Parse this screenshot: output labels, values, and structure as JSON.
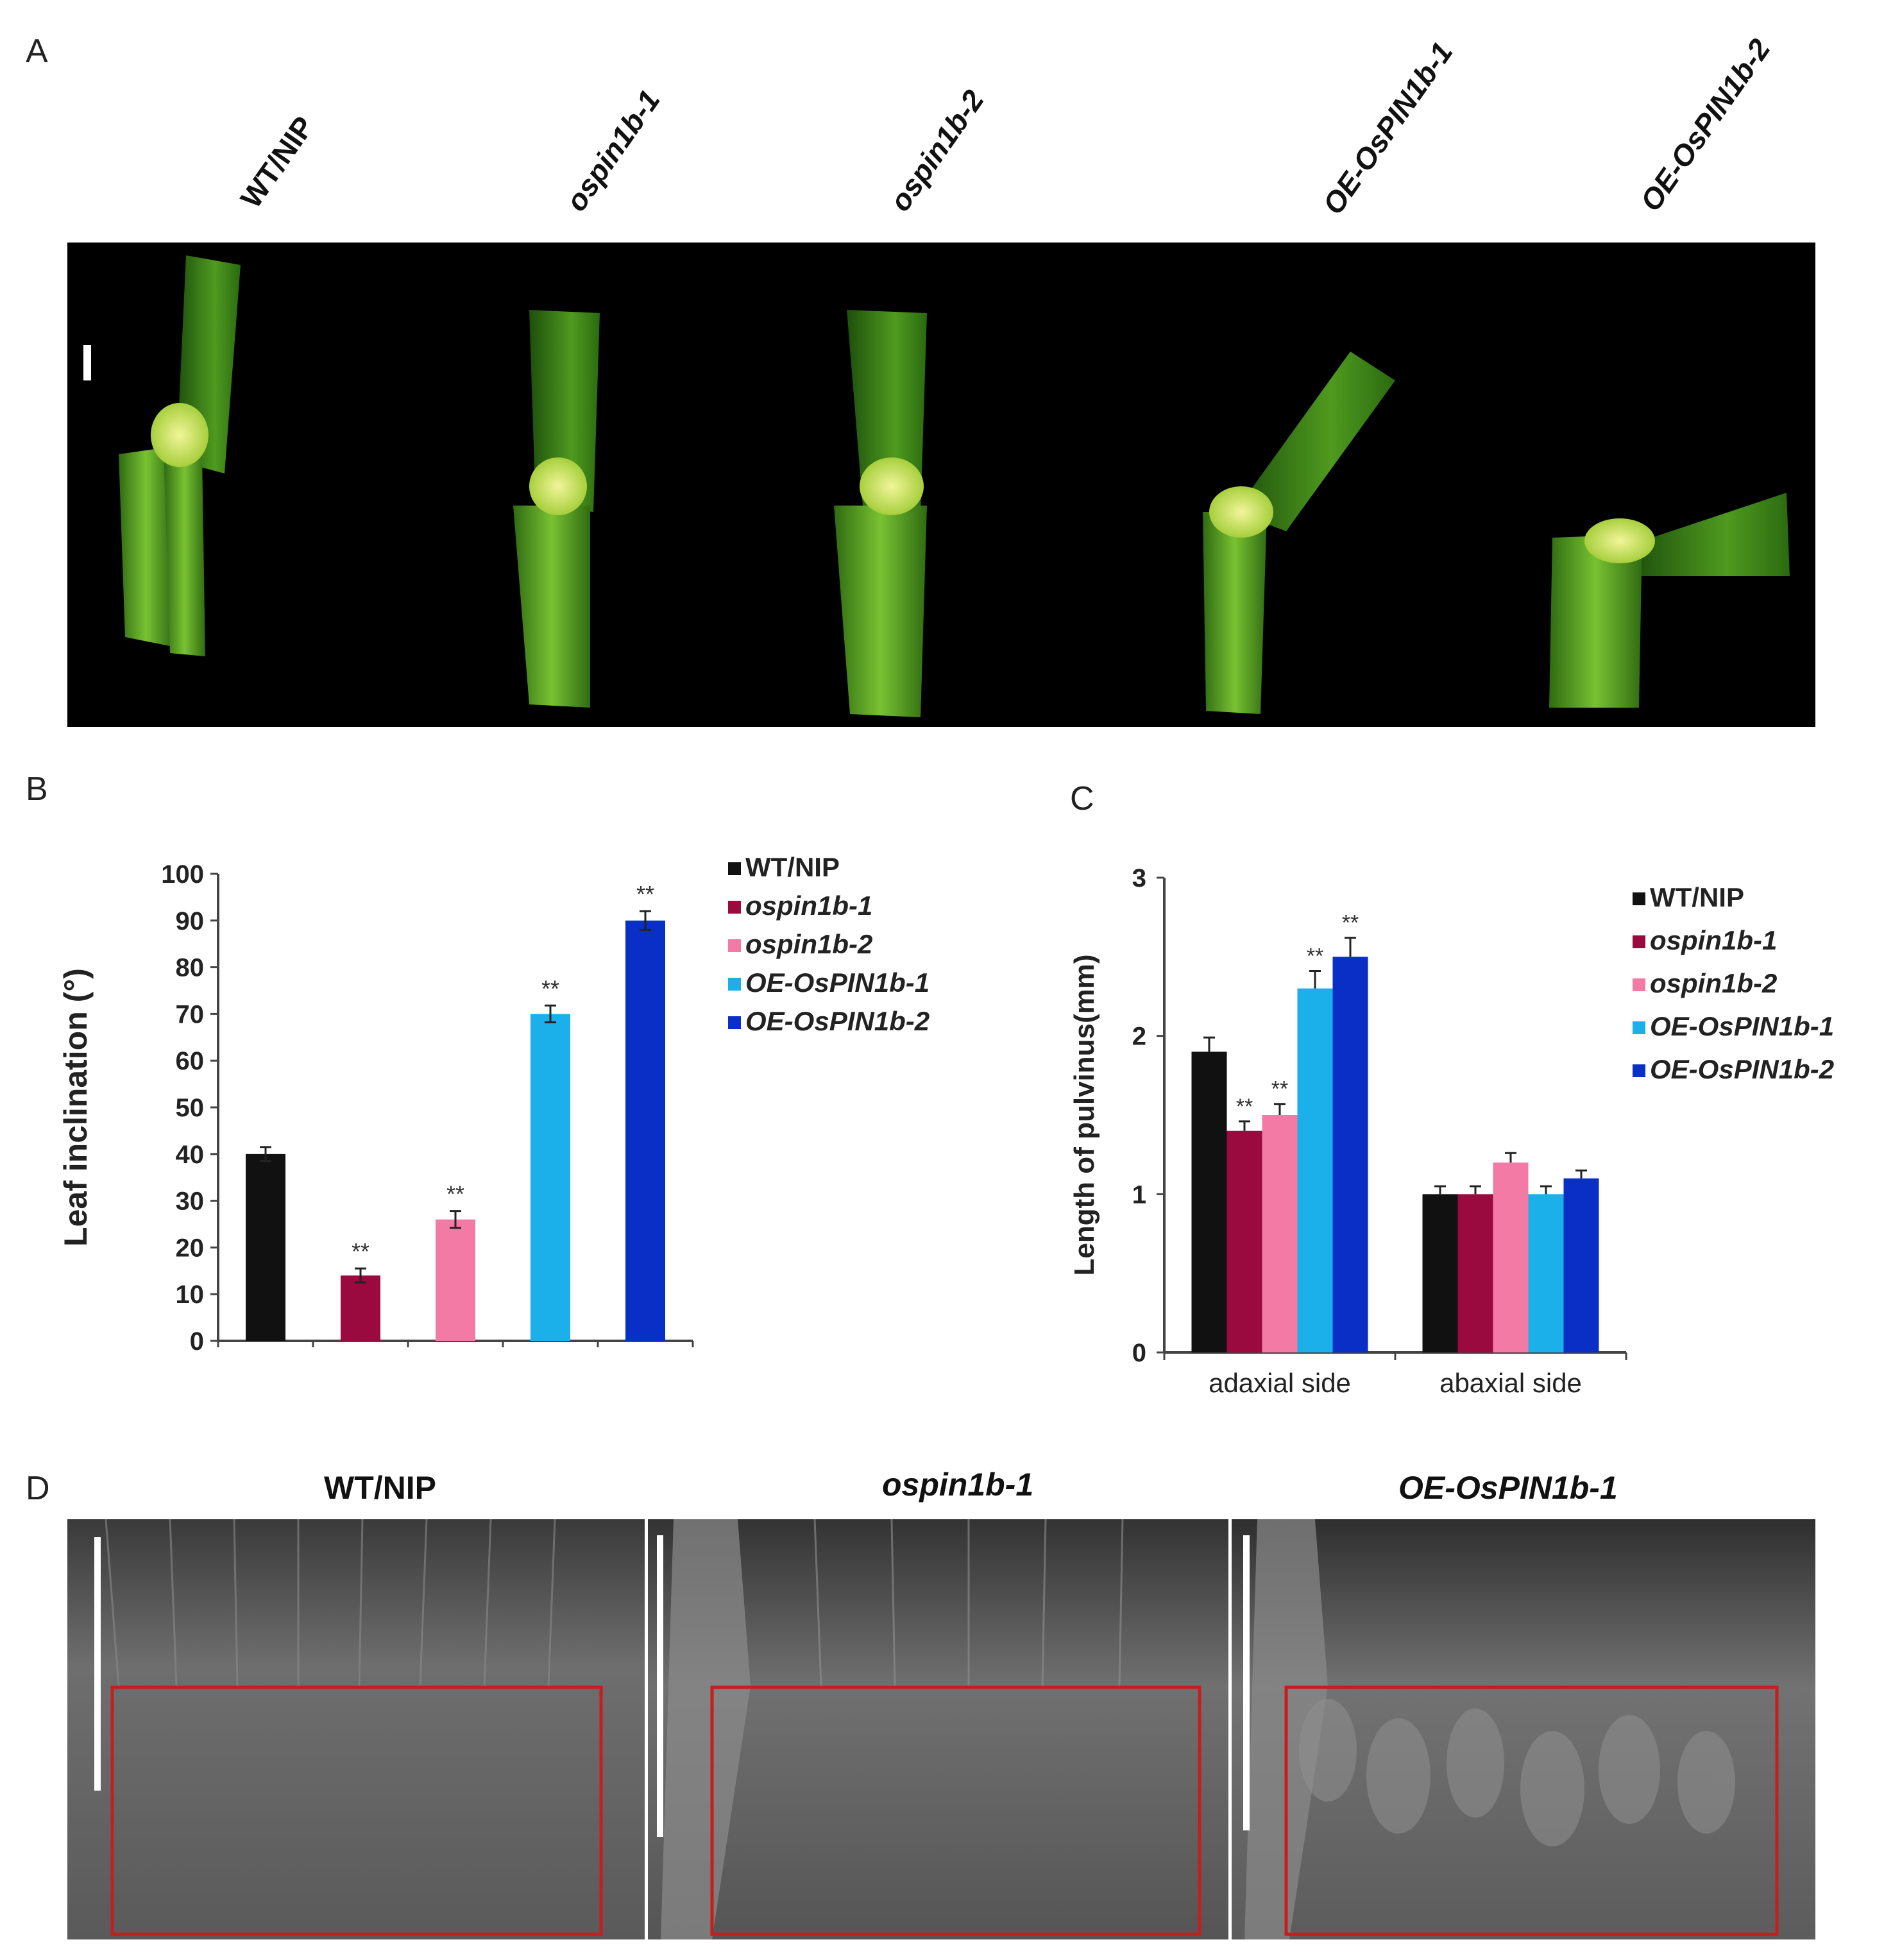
{
  "panels": {
    "a": {
      "letter": "A",
      "genotypes": [
        "WT/NIP",
        "ospin1b-1",
        "ospin1b-2",
        "OE-OsPIN1b-1",
        "OE-OsPIN1b-2"
      ]
    },
    "b": {
      "letter": "B"
    },
    "c": {
      "letter": "C"
    },
    "d": {
      "letter": "D",
      "titles": [
        "WT/NIP",
        "ospin1b-1",
        "OE-OsPIN1b-1"
      ]
    }
  },
  "colors": {
    "WT/NIP": "#111111",
    "ospin1b-1": "#9b0a3e",
    "ospin1b-2": "#f47aa6",
    "OE-OsPIN1b-1": "#1bb0ea",
    "OE-OsPIN1b-2": "#0a2fc7",
    "roi_box": "#c41e1e"
  },
  "chart_data": [
    {
      "type": "bar",
      "panel": "B",
      "title": "",
      "xlabel": "",
      "ylabel": "Leaf inclination (°)",
      "ylim": [
        0,
        100
      ],
      "yticks": [
        "0",
        "10",
        "20",
        "30",
        "40",
        "50",
        "60",
        "70",
        "80",
        "90",
        "100"
      ],
      "categories": [
        "WT/NIP",
        "ospin1b-1",
        "ospin1b-2",
        "OE-OsPIN1b-1",
        "OE-OsPIN1b-2"
      ],
      "values": [
        40,
        14,
        26,
        70,
        90
      ],
      "errors": [
        1.5,
        1.5,
        1.8,
        1.8,
        2
      ],
      "significance": [
        "",
        "**",
        "**",
        "**",
        "**"
      ],
      "legend": [
        "WT/NIP",
        "ospin1b-1",
        "ospin1b-2",
        "OE-OsPIN1b-1",
        "OE-OsPIN1b-2"
      ],
      "legend_position": "top-right",
      "grid": false
    },
    {
      "type": "bar",
      "panel": "C",
      "title": "",
      "xlabel": "",
      "ylabel": "Length of pulvinus(mm)",
      "ylim": [
        0,
        3
      ],
      "yticks": [
        "0",
        "1",
        "2",
        "3"
      ],
      "categories": [
        "adaxial side",
        "abaxial side"
      ],
      "series": [
        {
          "name": "WT/NIP",
          "values": [
            1.9,
            1.0
          ],
          "errors": [
            0.09,
            0.05
          ],
          "significance": [
            "",
            ""
          ]
        },
        {
          "name": "ospin1b-1",
          "values": [
            1.4,
            1.0
          ],
          "errors": [
            0.06,
            0.05
          ],
          "significance": [
            "**",
            ""
          ]
        },
        {
          "name": "ospin1b-2",
          "values": [
            1.5,
            1.2
          ],
          "errors": [
            0.07,
            0.06
          ],
          "significance": [
            "**",
            ""
          ]
        },
        {
          "name": "OE-OsPIN1b-1",
          "values": [
            2.3,
            1.0
          ],
          "errors": [
            0.11,
            0.05
          ],
          "significance": [
            "**",
            ""
          ]
        },
        {
          "name": "OE-OsPIN1b-2",
          "values": [
            2.5,
            1.1
          ],
          "errors": [
            0.12,
            0.05
          ],
          "significance": [
            "**",
            ""
          ]
        }
      ],
      "legend_position": "top-right",
      "grid": false
    }
  ]
}
